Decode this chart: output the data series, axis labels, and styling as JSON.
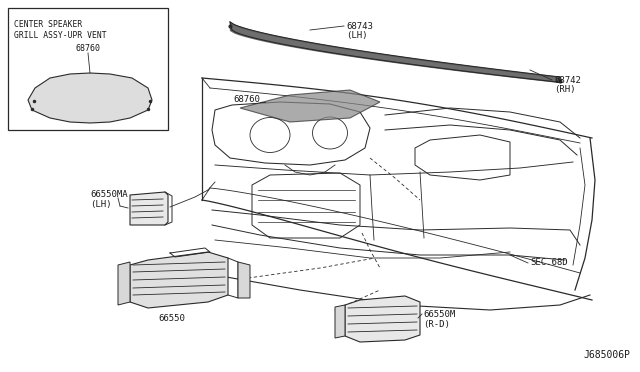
{
  "bg_color": "#ffffff",
  "line_color": "#2a2a2a",
  "text_color": "#1a1a1a",
  "fig_width": 6.4,
  "fig_height": 3.72,
  "dpi": 100,
  "diagram_id": "J685006P",
  "inset_label_line1": "CENTER SPEAKER",
  "inset_label_line2": "GRILL ASSY-UPR VENT",
  "inset_part_num": "68760",
  "label_68743": "68743",
  "label_LH1": "(LH)",
  "label_68760": "68760",
  "label_68742": "68742",
  "label_RH": "(RH)",
  "label_66550MA": "66550MA",
  "label_LH2": "(LH)",
  "label_SEC": "SEC.68D",
  "label_66550": "66550",
  "label_66550M": "66550M",
  "label_RD": "(R-D)"
}
